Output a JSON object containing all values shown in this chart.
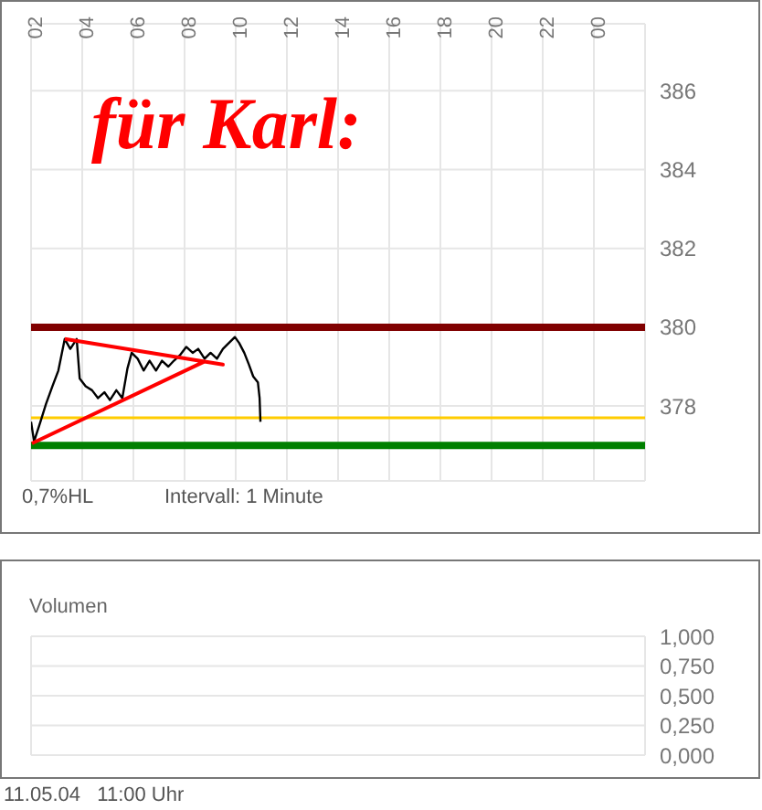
{
  "chart_data": [
    {
      "type": "line",
      "title": "für Karl:",
      "annotations": [
        "0,7%HL",
        "Intervall: 1 Minute"
      ],
      "xlim": [
        "--05-11T02:00",
        "--05-12T02:00"
      ],
      "xticks": [
        {
          "value": "--05-11T02:00",
          "label": "02"
        },
        {
          "value": "--05-11T04:00",
          "label": "04"
        },
        {
          "value": "--05-11T06:00",
          "label": "06"
        },
        {
          "value": "--05-11T08:00",
          "label": "08"
        },
        {
          "value": "--05-11T10:00",
          "label": "10"
        },
        {
          "value": "--05-11T12:00",
          "label": "12"
        },
        {
          "value": "--05-11T14:00",
          "label": "14"
        },
        {
          "value": "--05-11T16:00",
          "label": "16"
        },
        {
          "value": "--05-11T18:00",
          "label": "18"
        },
        {
          "value": "--05-11T20:00",
          "label": "20"
        },
        {
          "value": "--05-11T22:00",
          "label": "22"
        },
        {
          "value": "--05-12T00:00",
          "label": "00"
        }
      ],
      "ylim": [
        376.1,
        387.7
      ],
      "yticks": [
        378,
        380,
        382,
        384,
        386
      ],
      "grid": true,
      "marker": "none",
      "series": [
        {
          "color": "#000000",
          "x": [
            "--05-11T02:00",
            "--05-11T02:07",
            "--05-11T02:22",
            "--05-11T02:35",
            "--05-11T02:50",
            "--05-11T03:04",
            "--05-11T03:19",
            "--05-11T03:32",
            "--05-11T03:47",
            "--05-11T03:54",
            "--05-11T04:08",
            "--05-11T04:23",
            "--05-11T04:37",
            "--05-11T04:52",
            "--05-11T05:05",
            "--05-11T05:20",
            "--05-11T05:34",
            "--05-11T05:46",
            "--05-11T05:56",
            "--05-11T06:10",
            "--05-11T06:24",
            "--05-11T06:38",
            "--05-11T06:53",
            "--05-11T07:07",
            "--05-11T07:22",
            "--05-11T07:35",
            "--05-11T07:50",
            "--05-11T08:04",
            "--05-11T08:19",
            "--05-11T08:32",
            "--05-11T08:47",
            "--05-11T09:01",
            "--05-11T09:16",
            "--05-11T09:30",
            "--05-11T09:44",
            "--05-11T09:58",
            "--05-11T10:08",
            "--05-11T10:20",
            "--05-11T10:31",
            "--05-11T10:41",
            "--05-11T10:52",
            "--05-11T10:56",
            "--05-11T10:58"
          ],
          "values": [
            377.6,
            377.1,
            377.6,
            378.05,
            378.5,
            378.9,
            379.7,
            379.45,
            379.7,
            378.7,
            378.5,
            378.4,
            378.2,
            378.35,
            378.15,
            378.4,
            378.2,
            378.95,
            379.35,
            379.2,
            378.9,
            379.15,
            378.9,
            379.15,
            379.0,
            379.15,
            379.3,
            379.5,
            379.35,
            379.45,
            379.2,
            379.35,
            379.2,
            379.45,
            379.6,
            379.75,
            379.6,
            379.35,
            379.05,
            378.75,
            378.6,
            378.2,
            377.6
          ]
        },
        {
          "color": "#ff0000",
          "x": [
            "--05-11T03:19",
            "--05-11T09:30",
            "--05-11T08:47",
            "--05-11T02:02"
          ],
          "values": [
            379.7,
            379.05,
            379.13,
            377.05
          ]
        }
      ],
      "ref_lines": [
        {
          "axis": "y",
          "value": 380,
          "color": "#800000"
        },
        {
          "axis": "y",
          "value": 377,
          "color": "#008000"
        },
        {
          "axis": "y",
          "value": 377.7,
          "color": "#ffcc00"
        }
      ]
    },
    {
      "type": "bar",
      "title": "Volumen",
      "annotations": [
        "11.05.04   11:00 Uhr"
      ],
      "xlim": [
        "--05-11T02:00",
        "--05-12T02:00"
      ],
      "xticks": [
        {
          "value": "--05-11T02:00",
          "label": null
        },
        {
          "value": "--05-11T04:00",
          "label": null
        },
        {
          "value": "--05-11T06:00",
          "label": null
        },
        {
          "value": "--05-11T08:00",
          "label": null
        },
        {
          "value": "--05-11T10:00",
          "label": null
        },
        {
          "value": "--05-11T12:00",
          "label": null
        },
        {
          "value": "--05-11T14:00",
          "label": null
        },
        {
          "value": "--05-11T16:00",
          "label": null
        },
        {
          "value": "--05-11T18:00",
          "label": null
        },
        {
          "value": "--05-11T20:00",
          "label": null
        },
        {
          "value": "--05-11T22:00",
          "label": null
        },
        {
          "value": "--05-12T00:00",
          "label": null
        }
      ],
      "ylim": [
        0,
        1
      ],
      "yticks": [
        {
          "value": 0,
          "label": "0,000"
        },
        {
          "value": 0.25,
          "label": "0,250"
        },
        {
          "value": 0.5,
          "label": "0,500"
        },
        {
          "value": 0.75,
          "label": "0,750"
        },
        {
          "value": 1,
          "label": "1,000"
        }
      ],
      "grid": true,
      "tick_labels": "y"
    }
  ]
}
